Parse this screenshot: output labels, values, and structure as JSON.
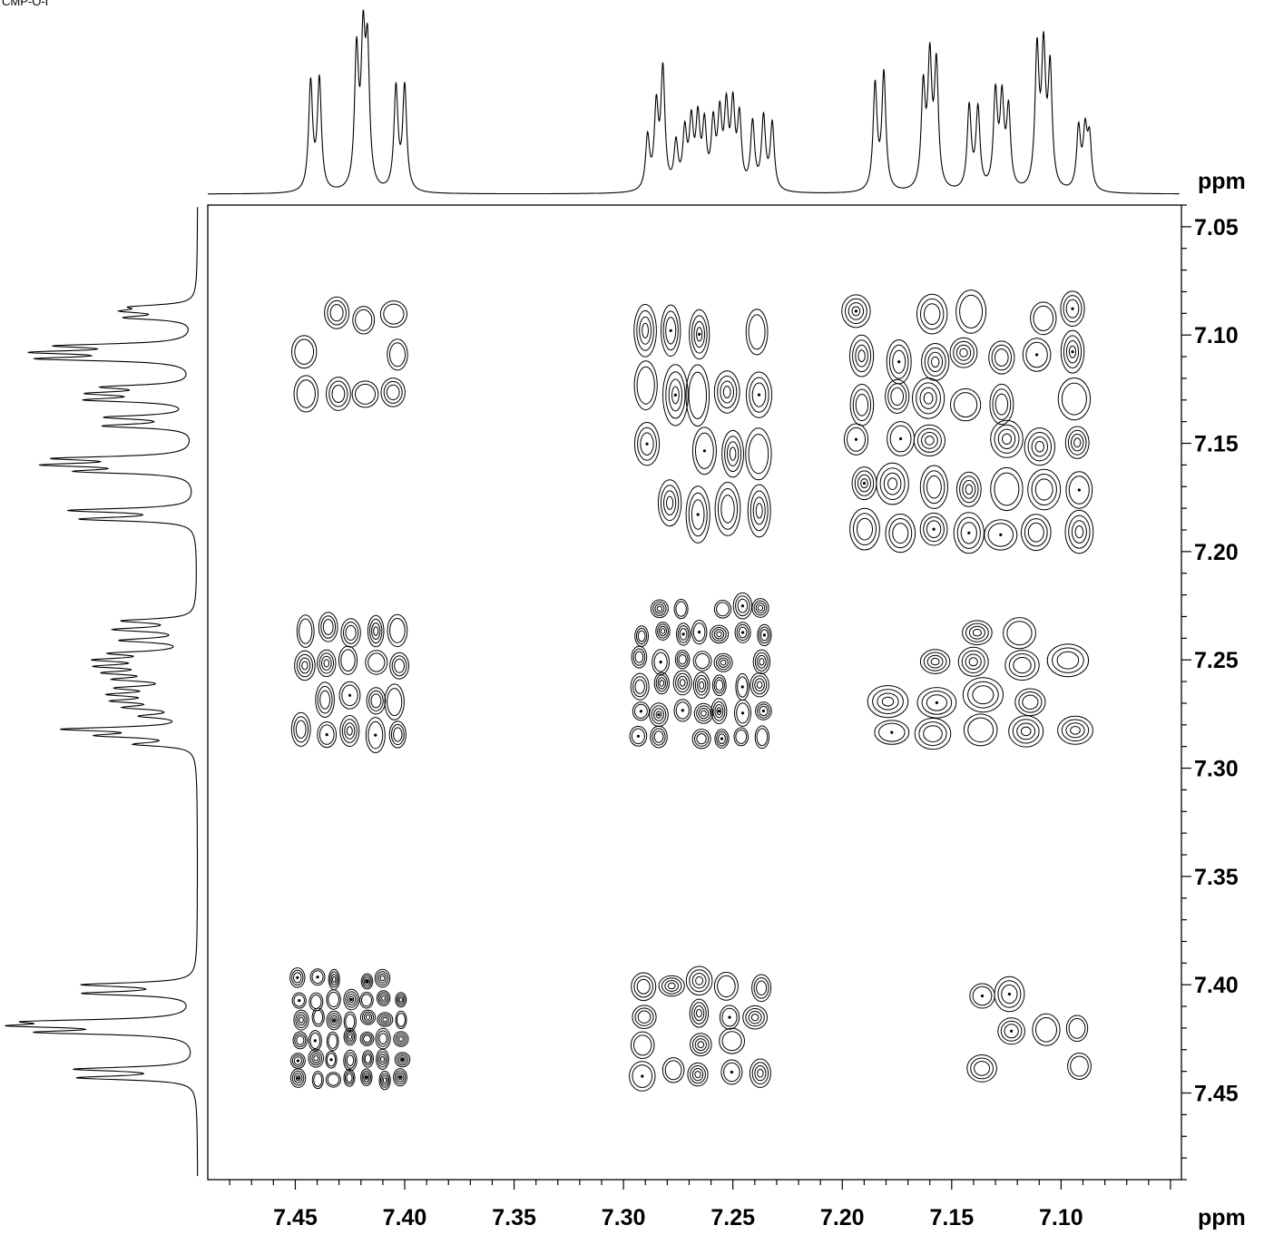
{
  "corner_label": "CMP-O-I",
  "chart_data": {
    "type": "contour",
    "experiment": "2D homonuclear correlation (COSY-type)",
    "x_axis": {
      "label": "ppm",
      "range": [
        7.49,
        7.045
      ],
      "reversed": true,
      "tick_labels": [
        "7.45",
        "7.40",
        "7.35",
        "7.30",
        "7.25",
        "7.20",
        "7.15",
        "7.10"
      ],
      "tick_values": [
        7.45,
        7.4,
        7.35,
        7.3,
        7.25,
        7.2,
        7.15,
        7.1
      ],
      "minor_tick_step": 0.01
    },
    "y_axis": {
      "label": "ppm",
      "range": [
        7.04,
        7.49
      ],
      "tick_labels": [
        "7.05",
        "7.10",
        "7.15",
        "7.20",
        "7.25",
        "7.30",
        "7.35",
        "7.40",
        "7.45"
      ],
      "tick_values": [
        7.05,
        7.1,
        7.15,
        7.2,
        7.25,
        7.3,
        7.35,
        7.4,
        7.45
      ],
      "minor_tick_step": 0.01
    },
    "projection_1d": {
      "description": "1H spectrum shown as top (F2) and left (F1) projections",
      "peaks": [
        {
          "ppm": 7.443,
          "height": 0.78
        },
        {
          "ppm": 7.439,
          "height": 0.8
        },
        {
          "ppm": 7.422,
          "height": 0.97
        },
        {
          "ppm": 7.419,
          "height": 0.99
        },
        {
          "ppm": 7.417,
          "height": 0.94
        },
        {
          "ppm": 7.404,
          "height": 0.74
        },
        {
          "ppm": 7.4,
          "height": 0.75
        },
        {
          "ppm": 7.289,
          "height": 0.38
        },
        {
          "ppm": 7.285,
          "height": 0.58
        },
        {
          "ppm": 7.282,
          "height": 0.85
        },
        {
          "ppm": 7.276,
          "height": 0.32
        },
        {
          "ppm": 7.272,
          "height": 0.4
        },
        {
          "ppm": 7.269,
          "height": 0.46
        },
        {
          "ppm": 7.266,
          "height": 0.48
        },
        {
          "ppm": 7.263,
          "height": 0.44
        },
        {
          "ppm": 7.259,
          "height": 0.45
        },
        {
          "ppm": 7.256,
          "height": 0.5
        },
        {
          "ppm": 7.253,
          "height": 0.55
        },
        {
          "ppm": 7.25,
          "height": 0.57
        },
        {
          "ppm": 7.247,
          "height": 0.5
        },
        {
          "ppm": 7.241,
          "height": 0.48
        },
        {
          "ppm": 7.236,
          "height": 0.52
        },
        {
          "ppm": 7.232,
          "height": 0.48
        },
        {
          "ppm": 7.185,
          "height": 0.76
        },
        {
          "ppm": 7.181,
          "height": 0.84
        },
        {
          "ppm": 7.163,
          "height": 0.72
        },
        {
          "ppm": 7.16,
          "height": 0.9
        },
        {
          "ppm": 7.157,
          "height": 0.88
        },
        {
          "ppm": 7.142,
          "height": 0.6
        },
        {
          "ppm": 7.138,
          "height": 0.58
        },
        {
          "ppm": 7.13,
          "height": 0.68
        },
        {
          "ppm": 7.127,
          "height": 0.62
        },
        {
          "ppm": 7.124,
          "height": 0.56
        },
        {
          "ppm": 7.111,
          "height": 0.98
        },
        {
          "ppm": 7.108,
          "height": 0.95
        },
        {
          "ppm": 7.105,
          "height": 0.85
        },
        {
          "ppm": 7.092,
          "height": 0.44
        },
        {
          "ppm": 7.089,
          "height": 0.4
        },
        {
          "ppm": 7.087,
          "height": 0.36
        }
      ]
    },
    "cross_peak_blocks": [
      {
        "x_range": [
          7.452,
          7.398
        ],
        "y_range": [
          7.083,
          7.135
        ],
        "density": "sparse"
      },
      {
        "x_range": [
          7.297,
          7.232
        ],
        "y_range": [
          7.083,
          7.195
        ],
        "density": "medium"
      },
      {
        "x_range": [
          7.2,
          7.085
        ],
        "y_range": [
          7.08,
          7.2
        ],
        "density": "dense"
      },
      {
        "x_range": [
          7.452,
          7.398
        ],
        "y_range": [
          7.228,
          7.292
        ],
        "density": "medium"
      },
      {
        "x_range": [
          7.297,
          7.232
        ],
        "y_range": [
          7.22,
          7.292
        ],
        "density": "dense"
      },
      {
        "x_range": [
          7.19,
          7.085
        ],
        "y_range": [
          7.228,
          7.292
        ],
        "density": "medium"
      },
      {
        "x_range": [
          7.452,
          7.398
        ],
        "y_range": [
          7.393,
          7.448
        ],
        "density": "dense"
      },
      {
        "x_range": [
          7.297,
          7.232
        ],
        "y_range": [
          7.393,
          7.448
        ],
        "density": "medium"
      },
      {
        "x_range": [
          7.145,
          7.085
        ],
        "y_range": [
          7.398,
          7.445
        ],
        "density": "sparse"
      }
    ],
    "grid": false,
    "legend": "none"
  }
}
